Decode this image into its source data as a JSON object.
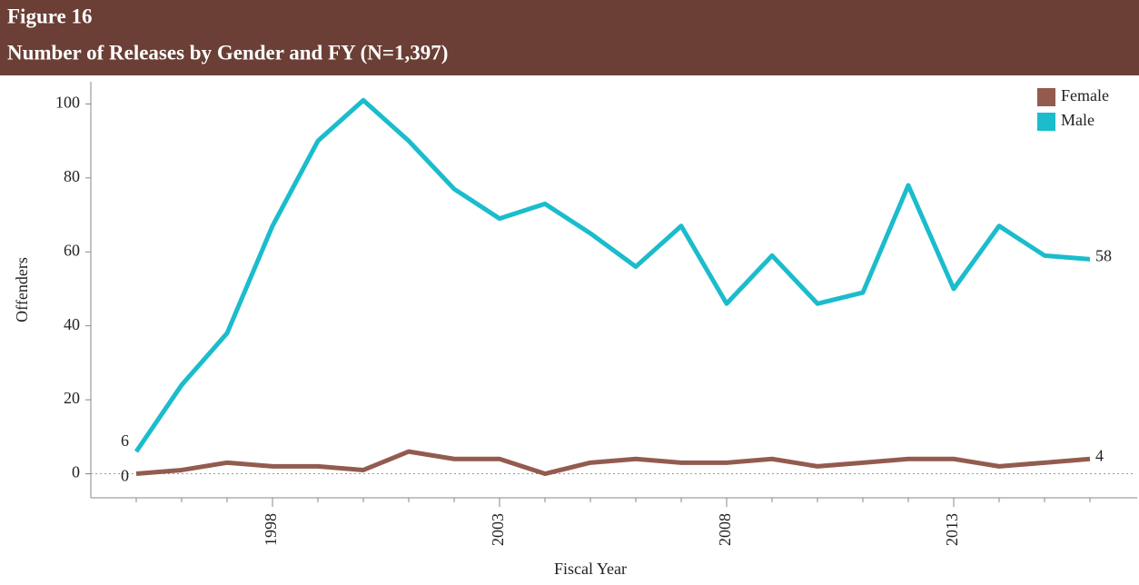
{
  "chart_data": {
    "type": "line",
    "figure_label": "Figure 16",
    "title": "Number of Releases by Gender and FY (N=1,397)",
    "xlabel": "Fiscal Year",
    "ylabel": "Offenders",
    "x": [
      1995,
      1996,
      1997,
      1998,
      1999,
      2000,
      2001,
      2002,
      2003,
      2004,
      2005,
      2006,
      2007,
      2008,
      2009,
      2010,
      2011,
      2012,
      2013,
      2014,
      2015,
      2016
    ],
    "series": [
      {
        "name": "Female",
        "color": "#935b4f",
        "values": [
          0,
          1,
          3,
          2,
          2,
          1,
          6,
          4,
          4,
          0,
          3,
          4,
          3,
          3,
          4,
          2,
          3,
          4,
          4,
          2,
          3,
          4
        ]
      },
      {
        "name": "Male",
        "color": "#1bbccc",
        "values": [
          6,
          24,
          38,
          67,
          90,
          101,
          90,
          77,
          69,
          73,
          65,
          56,
          67,
          46,
          59,
          46,
          49,
          78,
          50,
          67,
          59,
          58
        ]
      }
    ],
    "xlim": [
      1994,
      2017
    ],
    "xticks": [
      1998,
      2003,
      2008,
      2013
    ],
    "ylim": [
      -6.5,
      106
    ],
    "yticks": [
      0,
      20,
      40,
      60,
      80,
      100
    ],
    "legend": "upper right",
    "grid": false
  }
}
